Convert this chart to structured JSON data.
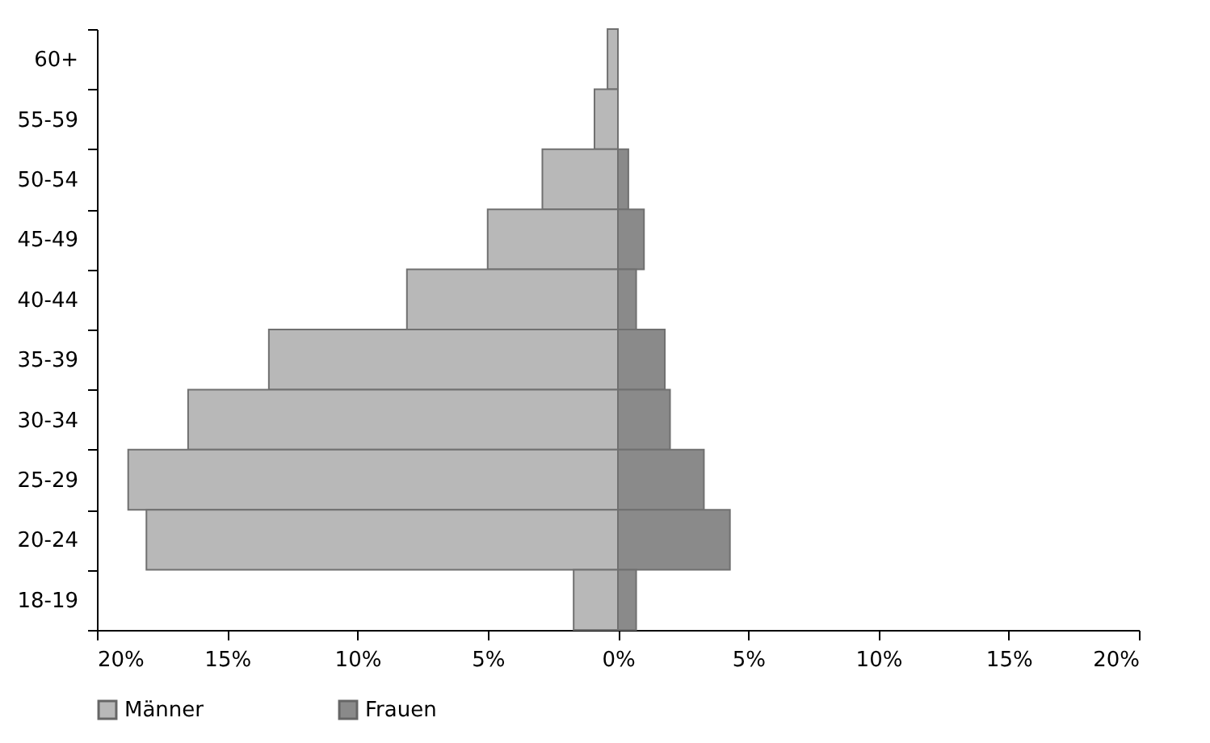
{
  "chart_data": {
    "type": "bar",
    "orientation": "horizontal",
    "categories": [
      "60+",
      "55-59",
      "50-54",
      "45-49",
      "40-44",
      "35-39",
      "30-34",
      "25-29",
      "20-24",
      "18-19"
    ],
    "series": [
      {
        "name": "Männer",
        "color": "#b8b8b8",
        "values": [
          -0.4,
          -0.9,
          -2.9,
          -5.0,
          -8.1,
          -13.4,
          -16.5,
          -18.8,
          -18.1,
          -1.7
        ]
      },
      {
        "name": "Frauen",
        "color": "#8a8a8a",
        "values": [
          null,
          null,
          0.4,
          1.0,
          0.7,
          1.8,
          2.0,
          3.3,
          4.3,
          0.7
        ]
      }
    ],
    "xlim": [
      -20,
      20
    ],
    "xticks": [
      {
        "value": -20,
        "label": "20%"
      },
      {
        "value": -15,
        "label": "15%"
      },
      {
        "value": -10,
        "label": "10%"
      },
      {
        "value": -5,
        "label": "5%"
      },
      {
        "value": 0,
        "label": "0%"
      },
      {
        "value": 5,
        "label": "5%"
      },
      {
        "value": 10,
        "label": "10%"
      },
      {
        "value": 15,
        "label": "15%"
      },
      {
        "value": 20,
        "label": "20%"
      }
    ],
    "stacked": true,
    "grid": false,
    "legend": "bottom"
  }
}
